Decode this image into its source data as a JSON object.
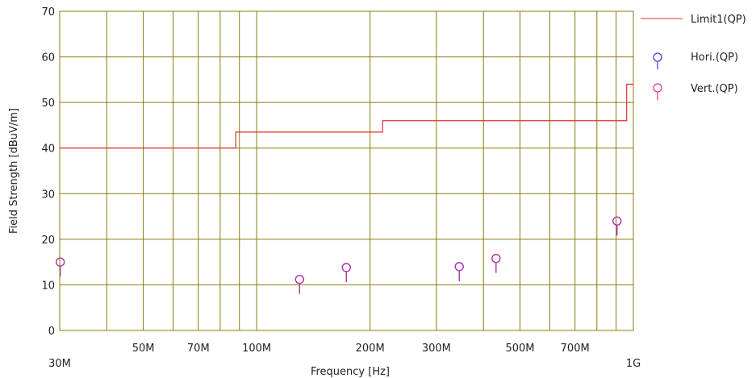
{
  "chart_data": {
    "type": "scatter",
    "title": "",
    "xlabel": "Frequency [Hz]",
    "ylabel": "Field Strength [dBuV/m]",
    "x_scale": "log",
    "xlim": [
      30,
      1000
    ],
    "ylim": [
      0,
      70
    ],
    "grid": true,
    "x_tick_labels": [
      "30M",
      "50M",
      "70M",
      "100M",
      "200M",
      "300M",
      "500M",
      "700M",
      "1G"
    ],
    "y_tick_labels": [
      "0",
      "10",
      "20",
      "30",
      "40",
      "50",
      "60",
      "70"
    ],
    "limit_line": {
      "name": "Limit1(QP)",
      "color": "#e0302a",
      "points": [
        [
          30,
          40
        ],
        [
          88,
          40
        ],
        [
          88,
          43.5
        ],
        [
          216,
          43.5
        ],
        [
          216,
          46
        ],
        [
          960,
          46
        ],
        [
          960,
          54
        ],
        [
          1000,
          54
        ]
      ]
    },
    "series": [
      {
        "name": "Hori.(QP)",
        "color": "#3a3ad6",
        "points": [
          [
            30.1,
            15
          ],
          [
            130,
            11.2
          ],
          [
            173,
            13.8
          ],
          [
            345,
            14
          ],
          [
            432,
            15.8
          ],
          [
            905,
            24
          ]
        ]
      },
      {
        "name": "Vert.(QP)",
        "color": "#e0309a",
        "points": [
          [
            30.1,
            15
          ],
          [
            130,
            11.2
          ],
          [
            173,
            13.8
          ],
          [
            345,
            14
          ],
          [
            432,
            15.8
          ],
          [
            905,
            24
          ]
        ]
      }
    ],
    "legend_position": "right"
  }
}
